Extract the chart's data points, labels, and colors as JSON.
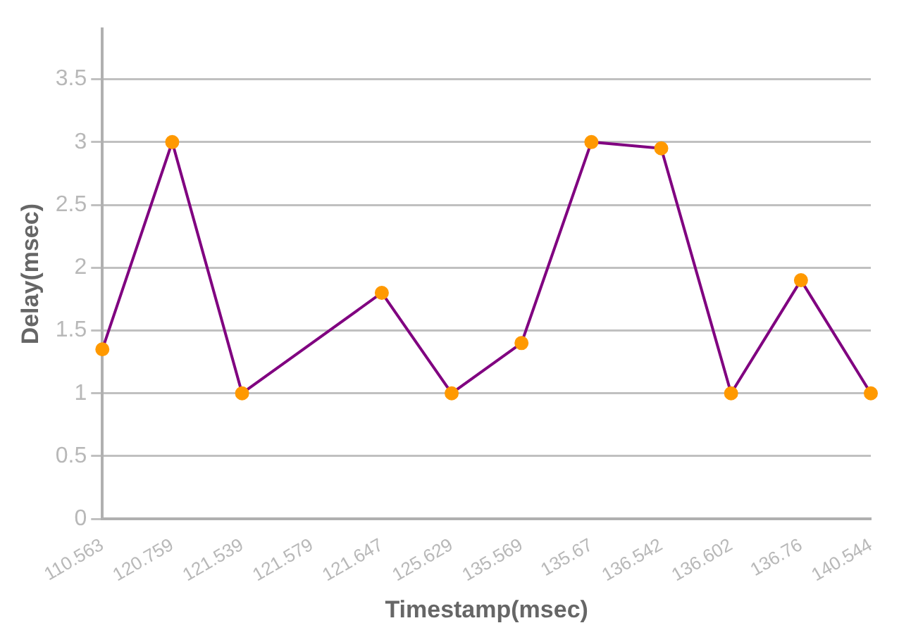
{
  "chart_data": {
    "type": "line",
    "xlabel": "Timestamp(msec)",
    "ylabel": "Delay(msec)",
    "categories": [
      "110.563",
      "120.759",
      "121.539",
      "121.579",
      "121.647",
      "125.629",
      "135.569",
      "135.67",
      "136.542",
      "136.602",
      "136.76",
      "140.544"
    ],
    "series": [
      {
        "color": "#800080",
        "colors": [
          "#ff9900",
          "#ff9900",
          "#ff9900",
          "#ff9900",
          "#ff9900",
          "#ff9900",
          "#ff9900",
          "#ff9900",
          "#ff9900",
          "#ff9900",
          "#ff9900",
          "#ff9900"
        ],
        "values": [
          1.35,
          3,
          1,
          null,
          1.8,
          1,
          1.4,
          3,
          2.95,
          1,
          1.9,
          1
        ]
      }
    ],
    "ylim": [
      0,
      3.9
    ],
    "yticks": [
      0,
      0.5,
      1,
      1.5,
      2,
      2.5,
      3,
      3.5
    ],
    "grid": "y",
    "legend": false,
    "marker": "circle",
    "line_style": "solid"
  }
}
